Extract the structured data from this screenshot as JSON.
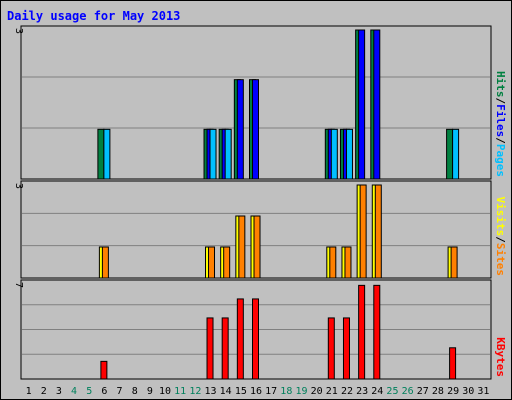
{
  "chart_data": [
    {
      "panel": "hits_files_pages",
      "type": "bar",
      "title": "Daily usage for May 2013",
      "ymax_label": "3",
      "legend": [
        {
          "name": "Pages",
          "color": "#00c0ff"
        },
        {
          "name": "Files",
          "color": "#0000ff"
        },
        {
          "name": "Hits",
          "color": "#008040"
        }
      ],
      "separator": "/",
      "x": [
        1,
        2,
        3,
        4,
        5,
        6,
        7,
        8,
        9,
        10,
        11,
        12,
        13,
        14,
        15,
        16,
        17,
        18,
        19,
        20,
        21,
        22,
        23,
        24,
        25,
        26,
        27,
        28,
        29,
        30,
        31
      ],
      "series": [
        {
          "name": "Hits",
          "color": "#008040",
          "values": [
            0,
            0,
            0,
            0,
            0,
            1,
            0,
            0,
            0,
            0,
            0,
            0,
            1,
            1,
            2,
            2,
            0,
            0,
            0,
            0,
            1,
            1,
            3,
            3,
            0,
            0,
            0,
            0,
            1,
            0,
            0
          ]
        },
        {
          "name": "Files",
          "color": "#0000ff",
          "values": [
            0,
            0,
            0,
            0,
            0,
            0,
            0,
            0,
            0,
            0,
            0,
            0,
            1,
            1,
            2,
            2,
            0,
            0,
            0,
            0,
            1,
            1,
            3,
            3,
            0,
            0,
            0,
            0,
            0,
            0,
            0
          ]
        },
        {
          "name": "Pages",
          "color": "#00c0ff",
          "values": [
            0,
            0,
            0,
            0,
            0,
            1,
            0,
            0,
            0,
            0,
            0,
            0,
            1,
            1,
            0,
            0,
            0,
            0,
            0,
            0,
            1,
            1,
            0,
            0,
            0,
            0,
            0,
            0,
            1,
            0,
            0
          ]
        }
      ],
      "ylim": [
        0,
        3
      ]
    },
    {
      "panel": "visits_sites",
      "type": "bar",
      "ymax_label": "3",
      "legend": [
        {
          "name": "Sites",
          "color": "#ff8000"
        },
        {
          "name": "Visits",
          "color": "#ffff00"
        }
      ],
      "separator": "/",
      "x": [
        1,
        2,
        3,
        4,
        5,
        6,
        7,
        8,
        9,
        10,
        11,
        12,
        13,
        14,
        15,
        16,
        17,
        18,
        19,
        20,
        21,
        22,
        23,
        24,
        25,
        26,
        27,
        28,
        29,
        30,
        31
      ],
      "series": [
        {
          "name": "Visits",
          "color": "#ffff00",
          "values": [
            0,
            0,
            0,
            0,
            0,
            1,
            0,
            0,
            0,
            0,
            0,
            0,
            1,
            1,
            2,
            2,
            0,
            0,
            0,
            0,
            1,
            1,
            3,
            3,
            0,
            0,
            0,
            0,
            1,
            0,
            0
          ]
        },
        {
          "name": "Sites",
          "color": "#ff8000",
          "values": [
            0,
            0,
            0,
            0,
            0,
            1,
            0,
            0,
            0,
            0,
            0,
            0,
            1,
            1,
            2,
            2,
            0,
            0,
            0,
            0,
            1,
            1,
            3,
            3,
            0,
            0,
            0,
            0,
            1,
            0,
            0
          ]
        }
      ],
      "ylim": [
        0,
        3
      ]
    },
    {
      "panel": "kbytes",
      "type": "bar",
      "ymax_label": "7",
      "legend": [
        {
          "name": "KBytes",
          "color": "#ff0000"
        }
      ],
      "x": [
        1,
        2,
        3,
        4,
        5,
        6,
        7,
        8,
        9,
        10,
        11,
        12,
        13,
        14,
        15,
        16,
        17,
        18,
        19,
        20,
        21,
        22,
        23,
        24,
        25,
        26,
        27,
        28,
        29,
        30,
        31
      ],
      "series": [
        {
          "name": "KBytes",
          "color": "#ff0000",
          "values": [
            0,
            0,
            0,
            0,
            0,
            1.3,
            0,
            0,
            0,
            0,
            0,
            0,
            4.5,
            4.5,
            5.9,
            5.9,
            0,
            0,
            0,
            0,
            4.5,
            4.5,
            6.9,
            6.9,
            0,
            0,
            0,
            0,
            2.3,
            0,
            0
          ]
        }
      ],
      "ylim": [
        0,
        7
      ]
    }
  ],
  "x_labels": [
    {
      "label": "1",
      "color": "#000000"
    },
    {
      "label": "2",
      "color": "#000000"
    },
    {
      "label": "3",
      "color": "#000000"
    },
    {
      "label": "4",
      "color": "#00805c"
    },
    {
      "label": "5",
      "color": "#00805c"
    },
    {
      "label": "6",
      "color": "#000000"
    },
    {
      "label": "7",
      "color": "#000000"
    },
    {
      "label": "8",
      "color": "#000000"
    },
    {
      "label": "9",
      "color": "#000000"
    },
    {
      "label": "10",
      "color": "#000000"
    },
    {
      "label": "11",
      "color": "#00805c"
    },
    {
      "label": "12",
      "color": "#00805c"
    },
    {
      "label": "13",
      "color": "#000000"
    },
    {
      "label": "14",
      "color": "#000000"
    },
    {
      "label": "15",
      "color": "#000000"
    },
    {
      "label": "16",
      "color": "#000000"
    },
    {
      "label": "17",
      "color": "#000000"
    },
    {
      "label": "18",
      "color": "#00805c"
    },
    {
      "label": "19",
      "color": "#00805c"
    },
    {
      "label": "20",
      "color": "#000000"
    },
    {
      "label": "21",
      "color": "#000000"
    },
    {
      "label": "22",
      "color": "#000000"
    },
    {
      "label": "23",
      "color": "#000000"
    },
    {
      "label": "24",
      "color": "#000000"
    },
    {
      "label": "25",
      "color": "#00805c"
    },
    {
      "label": "26",
      "color": "#00805c"
    },
    {
      "label": "27",
      "color": "#000000"
    },
    {
      "label": "28",
      "color": "#000000"
    },
    {
      "label": "29",
      "color": "#000000"
    },
    {
      "label": "30",
      "color": "#000000"
    },
    {
      "label": "31",
      "color": "#000000"
    }
  ],
  "colors": {
    "background": "#c0c0c0",
    "title": "#0000ff",
    "gridline": "#808080"
  }
}
